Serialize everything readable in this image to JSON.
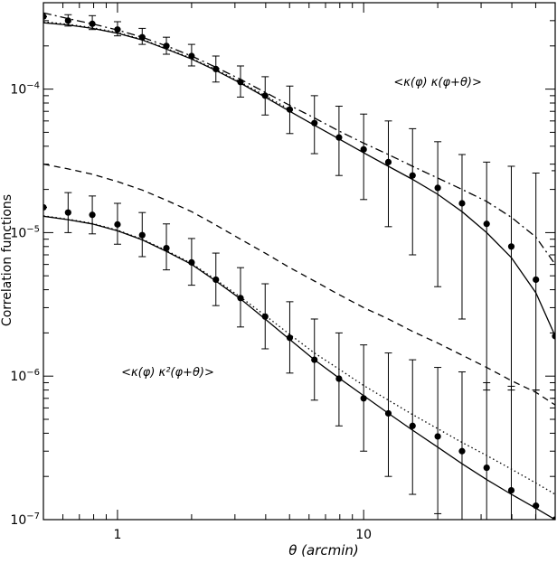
{
  "chart_data": {
    "type": "scatter",
    "title": "",
    "xlabel": "θ (arcmin)",
    "ylabel": "Correlation functions",
    "x_scale": "log",
    "y_scale": "log",
    "xlim": [
      0.5,
      60
    ],
    "ylim": [
      1e-07,
      0.0004
    ],
    "grid": false,
    "x_ticks": [
      {
        "value": 1,
        "label": "1"
      },
      {
        "value": 10,
        "label": "10"
      }
    ],
    "y_ticks": [
      {
        "value": 1e-07,
        "base": "10",
        "exp": "−7"
      },
      {
        "value": 1e-06,
        "base": "10",
        "exp": "−6"
      },
      {
        "value": 1e-05,
        "base": "10",
        "exp": "−5"
      },
      {
        "value": 0.0001,
        "base": "10",
        "exp": "−4"
      }
    ],
    "annotations": [
      {
        "id": "kk",
        "text": "<κ(φ) κ(φ+θ)>",
        "x": 20,
        "y": 0.000105
      },
      {
        "id": "kk2",
        "text": "<κ(φ) κ²(φ+θ)>",
        "x": 1.6,
        "y": 1e-06
      }
    ],
    "series": [
      {
        "kind": "points",
        "x": [
          0.5,
          0.63,
          0.79,
          1.0,
          1.26,
          1.58,
          2.0,
          2.51,
          3.16,
          3.98,
          5.01,
          6.31,
          7.94,
          10.0,
          12.6,
          15.8,
          20.0,
          25.1,
          31.6,
          39.8,
          50.1,
          60.0
        ],
        "y": [
          0.00032,
          0.0003,
          0.000285,
          0.00026,
          0.00023,
          0.0002,
          0.00017,
          0.000138,
          0.000112,
          9e-05,
          7.2e-05,
          5.8e-05,
          4.6e-05,
          3.8e-05,
          3.1e-05,
          2.5e-05,
          2.05e-05,
          1.6e-05,
          1.15e-05,
          8e-06,
          4.7e-06,
          1.9e-06
        ],
        "ylow": [
          0.00032,
          0.000275,
          0.00026,
          0.000235,
          0.000205,
          0.000175,
          0.000145,
          0.000112,
          8.8e-05,
          6.6e-05,
          4.9e-05,
          3.55e-05,
          2.5e-05,
          1.7e-05,
          1.1e-05,
          7e-06,
          4.2e-06,
          2.5e-06,
          8e-07,
          8e-07,
          8e-07,
          8e-07
        ],
        "yhigh": [
          0.00032,
          0.00033,
          0.000325,
          0.000295,
          0.000265,
          0.00023,
          0.000205,
          0.00017,
          0.000145,
          0.000122,
          0.000105,
          9e-05,
          7.6e-05,
          6.7e-05,
          6e-05,
          5.3e-05,
          4.3e-05,
          3.5e-05,
          3.1e-05,
          2.9e-05,
          2.6e-05,
          2.7e-05
        ]
      },
      {
        "kind": "points",
        "x": [
          0.5,
          0.63,
          0.79,
          1.0,
          1.26,
          1.58,
          2.0,
          2.51,
          3.16,
          3.98,
          5.01,
          6.31,
          7.94,
          10.0,
          12.6,
          15.8,
          20.0,
          25.1,
          31.6,
          39.8,
          50.1,
          60.0
        ],
        "y": [
          1.5e-05,
          1.38e-05,
          1.33e-05,
          1.14e-05,
          9.6e-06,
          7.8e-06,
          6.2e-06,
          4.7e-06,
          3.5e-06,
          2.6e-06,
          1.85e-06,
          1.3e-06,
          9.6e-07,
          7e-07,
          5.5e-07,
          4.5e-07,
          3.8e-07,
          3e-07,
          2.3e-07,
          1.6e-07,
          1.25e-07,
          1e-07
        ],
        "ylow": [
          1.5e-05,
          1e-05,
          9.8e-06,
          8.3e-06,
          6.8e-06,
          5.5e-06,
          4.3e-06,
          3.1e-06,
          2.2e-06,
          1.55e-06,
          1.05e-06,
          6.8e-07,
          4.5e-07,
          3e-07,
          2e-07,
          1.5e-07,
          1.1e-07,
          1e-07,
          1e-07,
          1e-07,
          1e-07,
          1e-07
        ],
        "yhigh": [
          1.5e-05,
          1.9e-05,
          1.8e-05,
          1.6e-05,
          1.38e-05,
          1.15e-05,
          9.1e-06,
          7.2e-06,
          5.7e-06,
          4.4e-06,
          3.3e-06,
          2.5e-06,
          2e-06,
          1.65e-06,
          1.45e-06,
          1.3e-06,
          1.15e-06,
          1.07e-06,
          9e-07,
          8.5e-07,
          8e-07,
          7e-07
        ]
      },
      {
        "kind": "line",
        "style": "solid",
        "x": [
          0.5,
          0.63,
          0.79,
          1.0,
          1.26,
          1.58,
          2.0,
          2.51,
          3.16,
          3.98,
          5.01,
          6.31,
          7.94,
          10.0,
          12.6,
          15.8,
          20.0,
          25.1,
          31.6,
          39.8,
          50.1,
          60.0
        ],
        "y": [
          0.00029,
          0.00028,
          0.000265,
          0.000245,
          0.00022,
          0.00019,
          0.000162,
          0.000135,
          0.00011,
          8.8e-05,
          7e-05,
          5.6e-05,
          4.5e-05,
          3.6e-05,
          2.9e-05,
          2.35e-05,
          1.85e-05,
          1.4e-05,
          1e-05,
          6.7e-06,
          3.8e-06,
          1.9e-06
        ]
      },
      {
        "kind": "line",
        "style": "dashdot",
        "x": [
          0.5,
          0.63,
          0.79,
          1.0,
          1.26,
          1.58,
          2.0,
          2.51,
          3.16,
          3.98,
          5.01,
          6.31,
          7.94,
          10.0,
          12.6,
          15.8,
          20.0,
          25.1,
          31.6,
          39.8,
          50.1,
          60.0
        ],
        "y": [
          0.00034,
          0.00031,
          0.000285,
          0.000258,
          0.00023,
          0.0002,
          0.00017,
          0.000142,
          0.000117,
          9.5e-05,
          7.7e-05,
          6.3e-05,
          5.1e-05,
          4.2e-05,
          3.5e-05,
          2.9e-05,
          2.4e-05,
          2e-05,
          1.65e-05,
          1.28e-05,
          9.3e-06,
          6e-06
        ]
      },
      {
        "kind": "line",
        "style": "dotted",
        "x": [
          0.5,
          0.63,
          0.79,
          1.0,
          1.26,
          1.58,
          2.0,
          2.51,
          3.16,
          3.98,
          5.01
        ],
        "y": [
          0.000295,
          0.000283,
          0.000268,
          0.000248,
          0.000222,
          0.000192,
          0.000164,
          0.000137,
          0.000112,
          9e-05,
          7.2e-05
        ]
      },
      {
        "kind": "line",
        "style": "solid",
        "x": [
          0.5,
          0.63,
          0.79,
          1.0,
          1.26,
          1.58,
          2.0,
          2.51,
          3.16,
          3.98,
          5.01,
          6.31,
          7.94,
          10.0,
          12.6,
          15.8,
          20.0,
          25.1,
          31.6,
          39.8,
          50.1,
          60.0
        ],
        "y": [
          1.3e-05,
          1.23e-05,
          1.15e-05,
          1.03e-05,
          8.9e-06,
          7.4e-06,
          6e-06,
          4.6e-06,
          3.45e-06,
          2.5e-06,
          1.8e-06,
          1.3e-06,
          9.7e-07,
          7.3e-07,
          5.5e-07,
          4.2e-07,
          3.2e-07,
          2.45e-07,
          1.9e-07,
          1.5e-07,
          1.2e-07,
          1e-07
        ]
      },
      {
        "kind": "line",
        "style": "dashed",
        "x": [
          0.5,
          0.63,
          0.79,
          1.0,
          1.26,
          1.58,
          2.0,
          2.51,
          3.16,
          3.98,
          5.01,
          6.31,
          7.94,
          10.0,
          12.6,
          15.8,
          20.0,
          25.1,
          31.6,
          39.8,
          50.1,
          60.0
        ],
        "y": [
          3e-05,
          2.78e-05,
          2.55e-05,
          2.27e-05,
          1.98e-05,
          1.68e-05,
          1.4e-05,
          1.13e-05,
          9e-06,
          7.2e-06,
          5.7e-06,
          4.6e-06,
          3.7e-06,
          3e-06,
          2.5e-06,
          2.05e-06,
          1.7e-06,
          1.4e-06,
          1.15e-06,
          9.3e-07,
          7.7e-07,
          6.3e-07
        ]
      },
      {
        "kind": "line",
        "style": "dotted",
        "x": [
          0.5,
          0.63,
          0.79,
          1.0,
          1.26,
          1.58,
          2.0,
          2.51,
          3.16,
          3.98,
          5.01,
          6.31,
          7.94,
          10.0,
          12.6,
          15.8,
          20.0,
          25.1,
          31.6,
          39.8,
          50.1,
          60.0
        ],
        "y": [
          1.31e-05,
          1.24e-05,
          1.16e-05,
          1.04e-05,
          9e-06,
          7.5e-06,
          6.1e-06,
          4.7e-06,
          3.55e-06,
          2.65e-06,
          1.95e-06,
          1.45e-06,
          1.12e-06,
          8.6e-07,
          6.8e-07,
          5.4e-07,
          4.3e-07,
          3.45e-07,
          2.8e-07,
          2.25e-07,
          1.8e-07,
          1.5e-07
        ]
      }
    ]
  }
}
